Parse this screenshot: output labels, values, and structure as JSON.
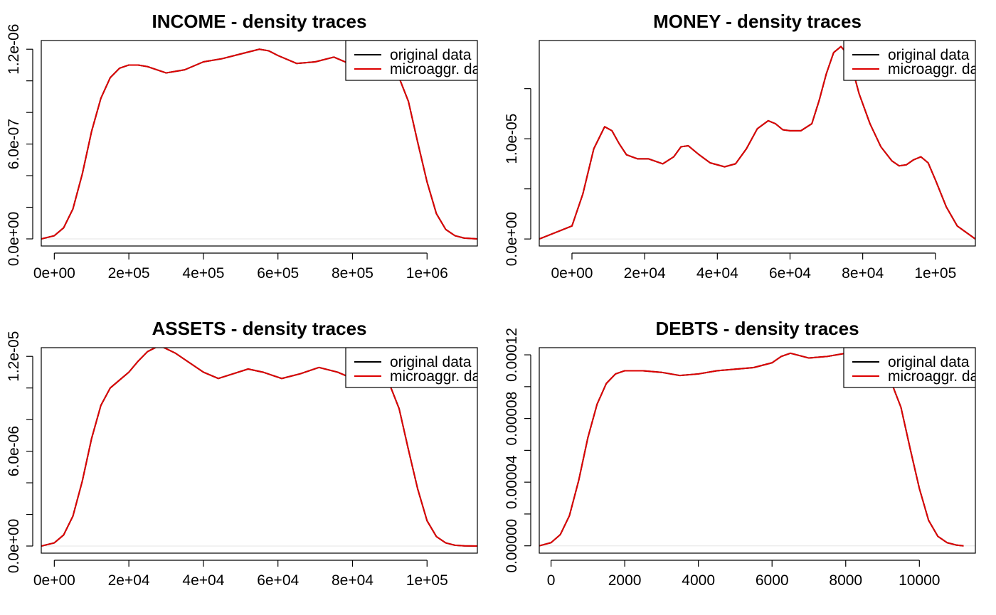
{
  "colors": {
    "original": "#000000",
    "microaggr": "#dd0000",
    "frame": "#000000",
    "background": "#ffffff"
  },
  "chart_data": [
    {
      "type": "line",
      "title": "INCOME - density traces",
      "xlabel": "",
      "ylabel": "",
      "xlim": [
        -35000,
        1135000
      ],
      "ylim": [
        -4.5e-08,
        1.255e-06
      ],
      "grid": false,
      "legend_position": "top-right",
      "x_ticks": [
        0,
        200000,
        400000,
        600000,
        800000,
        1000000
      ],
      "x_tick_labels": [
        "0e+00",
        "2e+05",
        "4e+05",
        "6e+05",
        "8e+05",
        "1e+06"
      ],
      "y_ticks": [
        0,
        2e-07,
        4e-07,
        6e-07,
        8e-07,
        1e-06,
        1.2e-06
      ],
      "y_tick_labels": [
        "0.0e+00",
        "",
        "",
        "6.0e-07",
        "",
        "",
        "1.2e-06"
      ],
      "series": [
        {
          "name": "original data",
          "x": [
            -35000,
            0,
            25000,
            50000,
            75000,
            100000,
            125000,
            150000,
            175000,
            200000,
            225000,
            250000,
            300000,
            350000,
            400000,
            450000,
            500000,
            550000,
            575000,
            600000,
            650000,
            700000,
            750000,
            800000,
            850000,
            900000,
            925000,
            950000,
            975000,
            1000000,
            1025000,
            1050000,
            1075000,
            1100000,
            1135000
          ],
          "y": [
            0,
            2e-08,
            7e-08,
            1.9e-07,
            4.1e-07,
            6.8e-07,
            8.9e-07,
            1.02e-06,
            1.08e-06,
            1.1e-06,
            1.1e-06,
            1.09e-06,
            1.05e-06,
            1.07e-06,
            1.12e-06,
            1.14e-06,
            1.17e-06,
            1.2e-06,
            1.19e-06,
            1.16e-06,
            1.11e-06,
            1.12e-06,
            1.15e-06,
            1.1e-06,
            1.06e-06,
            1.08e-06,
            1.02e-06,
            8.7e-07,
            6.1e-07,
            3.6e-07,
            1.6e-07,
            6e-08,
            2e-08,
            5e-09,
            0
          ]
        },
        {
          "name": "microaggr. data",
          "x": [
            -35000,
            0,
            25000,
            50000,
            75000,
            100000,
            125000,
            150000,
            175000,
            200000,
            225000,
            250000,
            300000,
            350000,
            400000,
            450000,
            500000,
            550000,
            575000,
            600000,
            650000,
            700000,
            750000,
            800000,
            850000,
            900000,
            925000,
            950000,
            975000,
            1000000,
            1025000,
            1050000,
            1075000,
            1100000,
            1135000
          ],
          "y": [
            0,
            2e-08,
            7e-08,
            1.9e-07,
            4.1e-07,
            6.8e-07,
            8.9e-07,
            1.02e-06,
            1.08e-06,
            1.1e-06,
            1.1e-06,
            1.09e-06,
            1.05e-06,
            1.07e-06,
            1.12e-06,
            1.14e-06,
            1.17e-06,
            1.2e-06,
            1.19e-06,
            1.16e-06,
            1.11e-06,
            1.12e-06,
            1.15e-06,
            1.1e-06,
            1.06e-06,
            1.08e-06,
            1.02e-06,
            8.7e-07,
            6.1e-07,
            3.6e-07,
            1.6e-07,
            6e-08,
            2e-08,
            5e-09,
            0
          ]
        }
      ]
    },
    {
      "type": "line",
      "title": "MONEY - density traces",
      "xlabel": "",
      "ylabel": "",
      "xlim": [
        -9000,
        111000
      ],
      "ylim": [
        -7e-07,
        1.98e-05
      ],
      "grid": false,
      "legend_position": "top-right",
      "x_ticks": [
        0,
        20000,
        40000,
        60000,
        80000,
        100000
      ],
      "x_tick_labels": [
        "0e+00",
        "2e+04",
        "4e+04",
        "6e+04",
        "8e+04",
        "1e+05"
      ],
      "y_ticks": [
        0,
        5e-06,
        1e-05,
        1.5e-05
      ],
      "y_tick_labels": [
        "0.0e+00",
        "",
        "1.0e-05",
        ""
      ],
      "series": [
        {
          "name": "original data",
          "x": [
            -9000,
            0,
            3000,
            6000,
            9000,
            11000,
            13000,
            15000,
            18000,
            21000,
            25000,
            28000,
            30000,
            32000,
            35000,
            38000,
            42000,
            45000,
            48000,
            51000,
            54000,
            56000,
            58000,
            60000,
            63000,
            66000,
            68000,
            70000,
            72000,
            74000,
            75000,
            77000,
            79000,
            82000,
            85000,
            88000,
            90000,
            92000,
            94000,
            96000,
            98000,
            100000,
            103000,
            106000,
            111000
          ],
          "y": [
            0,
            1.3e-06,
            4.5e-06,
            9e-06,
            1.12e-05,
            1.08e-05,
            9.5e-06,
            8.4e-06,
            8e-06,
            8e-06,
            7.5e-06,
            8.2e-06,
            9.2e-06,
            9.3e-06,
            8.4e-06,
            7.6e-06,
            7.2e-06,
            7.5e-06,
            9e-06,
            1.1e-05,
            1.18e-05,
            1.15e-05,
            1.09e-05,
            1.08e-05,
            1.08e-05,
            1.15e-05,
            1.38e-05,
            1.65e-05,
            1.86e-05,
            1.92e-05,
            1.88e-05,
            1.72e-05,
            1.45e-05,
            1.15e-05,
            9.2e-06,
            7.8e-06,
            7.3e-06,
            7.4e-06,
            7.9e-06,
            8.2e-06,
            7.6e-06,
            5.9e-06,
            3.2e-06,
            1.3e-06,
            0
          ]
        },
        {
          "name": "microaggr. data",
          "x": [
            -9000,
            0,
            3000,
            6000,
            9000,
            11000,
            13000,
            15000,
            18000,
            21000,
            25000,
            28000,
            30000,
            32000,
            35000,
            38000,
            42000,
            45000,
            48000,
            51000,
            54000,
            56000,
            58000,
            60000,
            63000,
            66000,
            68000,
            70000,
            72000,
            74000,
            75000,
            77000,
            79000,
            82000,
            85000,
            88000,
            90000,
            92000,
            94000,
            96000,
            98000,
            100000,
            103000,
            106000,
            111000
          ],
          "y": [
            0,
            1.3e-06,
            4.5e-06,
            9e-06,
            1.12e-05,
            1.08e-05,
            9.5e-06,
            8.4e-06,
            8e-06,
            8e-06,
            7.5e-06,
            8.2e-06,
            9.2e-06,
            9.3e-06,
            8.4e-06,
            7.6e-06,
            7.2e-06,
            7.5e-06,
            9e-06,
            1.1e-05,
            1.18e-05,
            1.15e-05,
            1.09e-05,
            1.08e-05,
            1.08e-05,
            1.15e-05,
            1.38e-05,
            1.65e-05,
            1.86e-05,
            1.92e-05,
            1.88e-05,
            1.72e-05,
            1.45e-05,
            1.15e-05,
            9.2e-06,
            7.8e-06,
            7.3e-06,
            7.4e-06,
            7.9e-06,
            8.2e-06,
            7.6e-06,
            5.9e-06,
            3.2e-06,
            1.3e-06,
            0
          ]
        }
      ]
    },
    {
      "type": "line",
      "title": "ASSETS - density traces",
      "xlabel": "",
      "ylabel": "",
      "xlim": [
        -3500,
        113500
      ],
      "ylim": [
        -4.5e-07,
        1.255e-05
      ],
      "grid": false,
      "legend_position": "top-right",
      "x_ticks": [
        0,
        20000,
        40000,
        60000,
        80000,
        100000
      ],
      "x_tick_labels": [
        "0e+00",
        "2e+04",
        "4e+04",
        "6e+04",
        "8e+04",
        "1e+05"
      ],
      "y_ticks": [
        0,
        2e-06,
        4e-06,
        6e-06,
        8e-06,
        1e-05,
        1.2e-05
      ],
      "y_tick_labels": [
        "0.0e+00",
        "",
        "",
        "6.0e-06",
        "",
        "",
        "1.2e-05"
      ],
      "series": [
        {
          "name": "original data",
          "x": [
            -3500,
            0,
            2500,
            5000,
            7500,
            10000,
            12500,
            15000,
            17500,
            20000,
            22500,
            25000,
            27500,
            29000,
            32500,
            35000,
            40000,
            44000,
            48000,
            52000,
            56000,
            61000,
            66000,
            71000,
            76000,
            80000,
            85000,
            90000,
            92500,
            95000,
            97500,
            100000,
            102500,
            105000,
            107500,
            110000,
            113500
          ],
          "y": [
            0,
            2e-07,
            7e-07,
            1.9e-06,
            4.1e-06,
            6.8e-06,
            8.9e-06,
            1e-05,
            1.05e-05,
            1.1e-05,
            1.17e-05,
            1.23e-05,
            1.26e-05,
            1.26e-05,
            1.22e-05,
            1.18e-05,
            1.1e-05,
            1.06e-05,
            1.09e-05,
            1.12e-05,
            1.1e-05,
            1.06e-05,
            1.09e-05,
            1.13e-05,
            1.1e-05,
            1.06e-05,
            1.08e-05,
            1.02e-05,
            8.7e-06,
            6.1e-06,
            3.6e-06,
            1.6e-06,
            6e-07,
            2e-07,
            5e-08,
            1e-08,
            0
          ]
        },
        {
          "name": "microaggr. data",
          "x": [
            -3500,
            0,
            2500,
            5000,
            7500,
            10000,
            12500,
            15000,
            17500,
            20000,
            22500,
            25000,
            27500,
            29000,
            32500,
            35000,
            40000,
            44000,
            48000,
            52000,
            56000,
            61000,
            66000,
            71000,
            76000,
            80000,
            85000,
            90000,
            92500,
            95000,
            97500,
            100000,
            102500,
            105000,
            107500,
            110000,
            113500
          ],
          "y": [
            0,
            2e-07,
            7e-07,
            1.9e-06,
            4.1e-06,
            6.8e-06,
            8.9e-06,
            1e-05,
            1.05e-05,
            1.1e-05,
            1.17e-05,
            1.23e-05,
            1.26e-05,
            1.26e-05,
            1.22e-05,
            1.18e-05,
            1.1e-05,
            1.06e-05,
            1.09e-05,
            1.12e-05,
            1.1e-05,
            1.06e-05,
            1.09e-05,
            1.13e-05,
            1.1e-05,
            1.06e-05,
            1.08e-05,
            1.02e-05,
            8.7e-06,
            6.1e-06,
            3.6e-06,
            1.6e-06,
            6e-07,
            2e-07,
            5e-08,
            1e-08,
            0
          ]
        }
      ]
    },
    {
      "type": "line",
      "title": "DEBTS - density traces",
      "xlabel": "",
      "ylabel": "",
      "xlim": [
        -320,
        11520
      ],
      "ylim": [
        -4.6e-06,
        0.0001245
      ],
      "grid": false,
      "legend_position": "top-right",
      "x_ticks": [
        0,
        2000,
        4000,
        6000,
        8000,
        10000
      ],
      "x_tick_labels": [
        "0",
        "2000",
        "4000",
        "6000",
        "8000",
        "10000"
      ],
      "y_ticks": [
        0,
        2e-05,
        4e-05,
        6e-05,
        8e-05,
        0.0001,
        0.00012
      ],
      "y_tick_labels": [
        "0.00000",
        "",
        "0.00004",
        "",
        "0.00008",
        "",
        "0.00012"
      ],
      "series": [
        {
          "name": "original data",
          "x": [
            -320,
            0,
            250,
            500,
            750,
            1000,
            1250,
            1500,
            1750,
            2000,
            2250,
            2500,
            3000,
            3500,
            4000,
            4500,
            5000,
            5500,
            6000,
            6250,
            6500,
            7000,
            7500,
            8000,
            8250,
            8500,
            8800,
            9000,
            9250,
            9500,
            9750,
            10000,
            10250,
            10500,
            10750,
            11000,
            11200
          ],
          "y": [
            0,
            2e-06,
            7e-06,
            1.9e-05,
            4.1e-05,
            6.8e-05,
            8.9e-05,
            0.000102,
            0.000108,
            0.00011,
            0.00011,
            0.00011,
            0.000109,
            0.000107,
            0.000108,
            0.00011,
            0.000111,
            0.000112,
            0.000115,
            0.000119,
            0.000121,
            0.000118,
            0.000119,
            0.000121,
            0.00012,
            0.000117,
            0.000112,
            0.000108,
            0.000102,
            8.7e-05,
            6.1e-05,
            3.6e-05,
            1.6e-05,
            6e-06,
            2e-06,
            5e-07,
            0
          ]
        },
        {
          "name": "microaggr. data",
          "x": [
            -320,
            0,
            250,
            500,
            750,
            1000,
            1250,
            1500,
            1750,
            2000,
            2250,
            2500,
            3000,
            3500,
            4000,
            4500,
            5000,
            5500,
            6000,
            6250,
            6500,
            7000,
            7500,
            8000,
            8250,
            8500,
            8800,
            9000,
            9250,
            9500,
            9750,
            10000,
            10250,
            10500,
            10750,
            11000,
            11200
          ],
          "y": [
            0,
            2e-06,
            7e-06,
            1.9e-05,
            4.1e-05,
            6.8e-05,
            8.9e-05,
            0.000102,
            0.000108,
            0.00011,
            0.00011,
            0.00011,
            0.000109,
            0.000107,
            0.000108,
            0.00011,
            0.000111,
            0.000112,
            0.000115,
            0.000119,
            0.000121,
            0.000118,
            0.000119,
            0.000121,
            0.00012,
            0.000117,
            0.000112,
            0.000108,
            0.000102,
            8.7e-05,
            6.1e-05,
            3.6e-05,
            1.6e-05,
            6e-06,
            2e-06,
            5e-07,
            0
          ]
        }
      ]
    }
  ]
}
